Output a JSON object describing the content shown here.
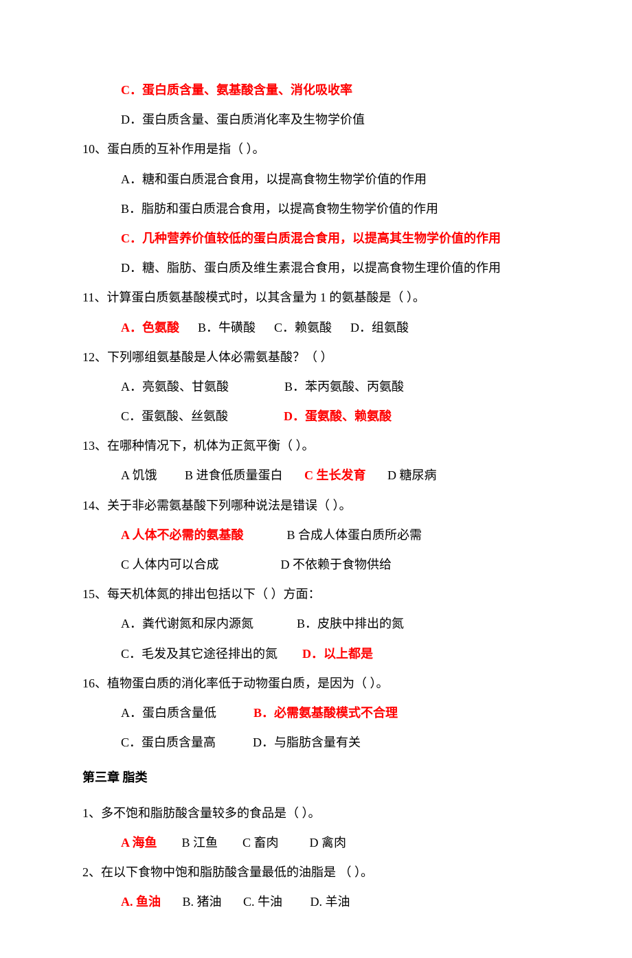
{
  "colors": {
    "text": "#000000",
    "answer": "#ff0000",
    "background": "#ffffff"
  },
  "font": {
    "family": "SimSun",
    "size_pt": 14,
    "line_height": 2.4
  },
  "partial": {
    "c": "C．蛋白质含量、氨基酸含量、消化吸收率",
    "d": "D．蛋白质含量、蛋白质消化率及生物学价值"
  },
  "q10": {
    "stem": "10、蛋白质的互补作用是指（            ）。",
    "a": "A．糖和蛋白质混合食用，以提高食物生物学价值的作用",
    "b": "B．脂肪和蛋白质混合食用，以提高食物生物学价值的作用",
    "c": "C．几种营养价值较低的蛋白质混合食用，以提高其生物学价值的作用",
    "d": "D．糖、脂肪、蛋白质及维生素混合食用，以提高食物生理价值的作用"
  },
  "q11": {
    "stem": "11、计算蛋白质氨基酸模式时，以其含量为 1 的氨基酸是（      ）。",
    "a": "A．色氨酸",
    "b": "B．牛磺酸",
    "c": "C．赖氨酸",
    "d": "D．组氨酸"
  },
  "q12": {
    "stem": "12、下列哪组氨基酸是人体必需氨基酸？（            ）",
    "a": "A．亮氨酸、甘氨酸",
    "b": "B．苯丙氨酸、丙氨酸",
    "c": "C．蛋氨酸、丝氨酸",
    "d": "D．蛋氨酸、赖氨酸"
  },
  "q13": {
    "stem": "13、在哪种情况下，机体为正氮平衡（       ）。",
    "a": "A 饥饿",
    "b": "B 进食低质量蛋白",
    "c": "C 生长发育",
    "d": "D 糖尿病"
  },
  "q14": {
    "stem": "14、关于非必需氨基酸下列哪种说法是错误（       ）。",
    "a": "A 人体不必需的氨基酸",
    "b": "B 合成人体蛋白质所必需",
    "c": "C 人体内可以合成",
    "d": "D 不依赖于食物供给"
  },
  "q15": {
    "stem": "15、每天机体氮的排出包括以下（                ）方面：",
    "a": "A．粪代谢氮和尿内源氮",
    "b": "B．皮肤中排出的氮",
    "c": "C．毛发及其它途径排出的氮",
    "d": "D．以上都是"
  },
  "q16": {
    "stem": "16、植物蛋白质的消化率低于动物蛋白质，是因为（        ）。",
    "a": "A．蛋白质含量低",
    "b": "B．必需氨基酸模式不合理",
    "c": "C．蛋白质含量高",
    "d": "D．与脂肪含量有关"
  },
  "chapter3": "第三章    脂类",
  "c3q1": {
    "stem": "1、多不饱和脂肪酸含量较多的食品是（            ）。",
    "a": "A 海鱼",
    "b": "B 江鱼",
    "c": "C 畜肉",
    "d": "D 禽肉"
  },
  "c3q2": {
    "stem": "2、在以下食物中饱和脂肪酸含量最低的油脂是  （            ）。",
    "a": "A. 鱼油",
    "b": "B. 猪油",
    "c": "C. 牛油",
    "d": "D. 羊油"
  }
}
